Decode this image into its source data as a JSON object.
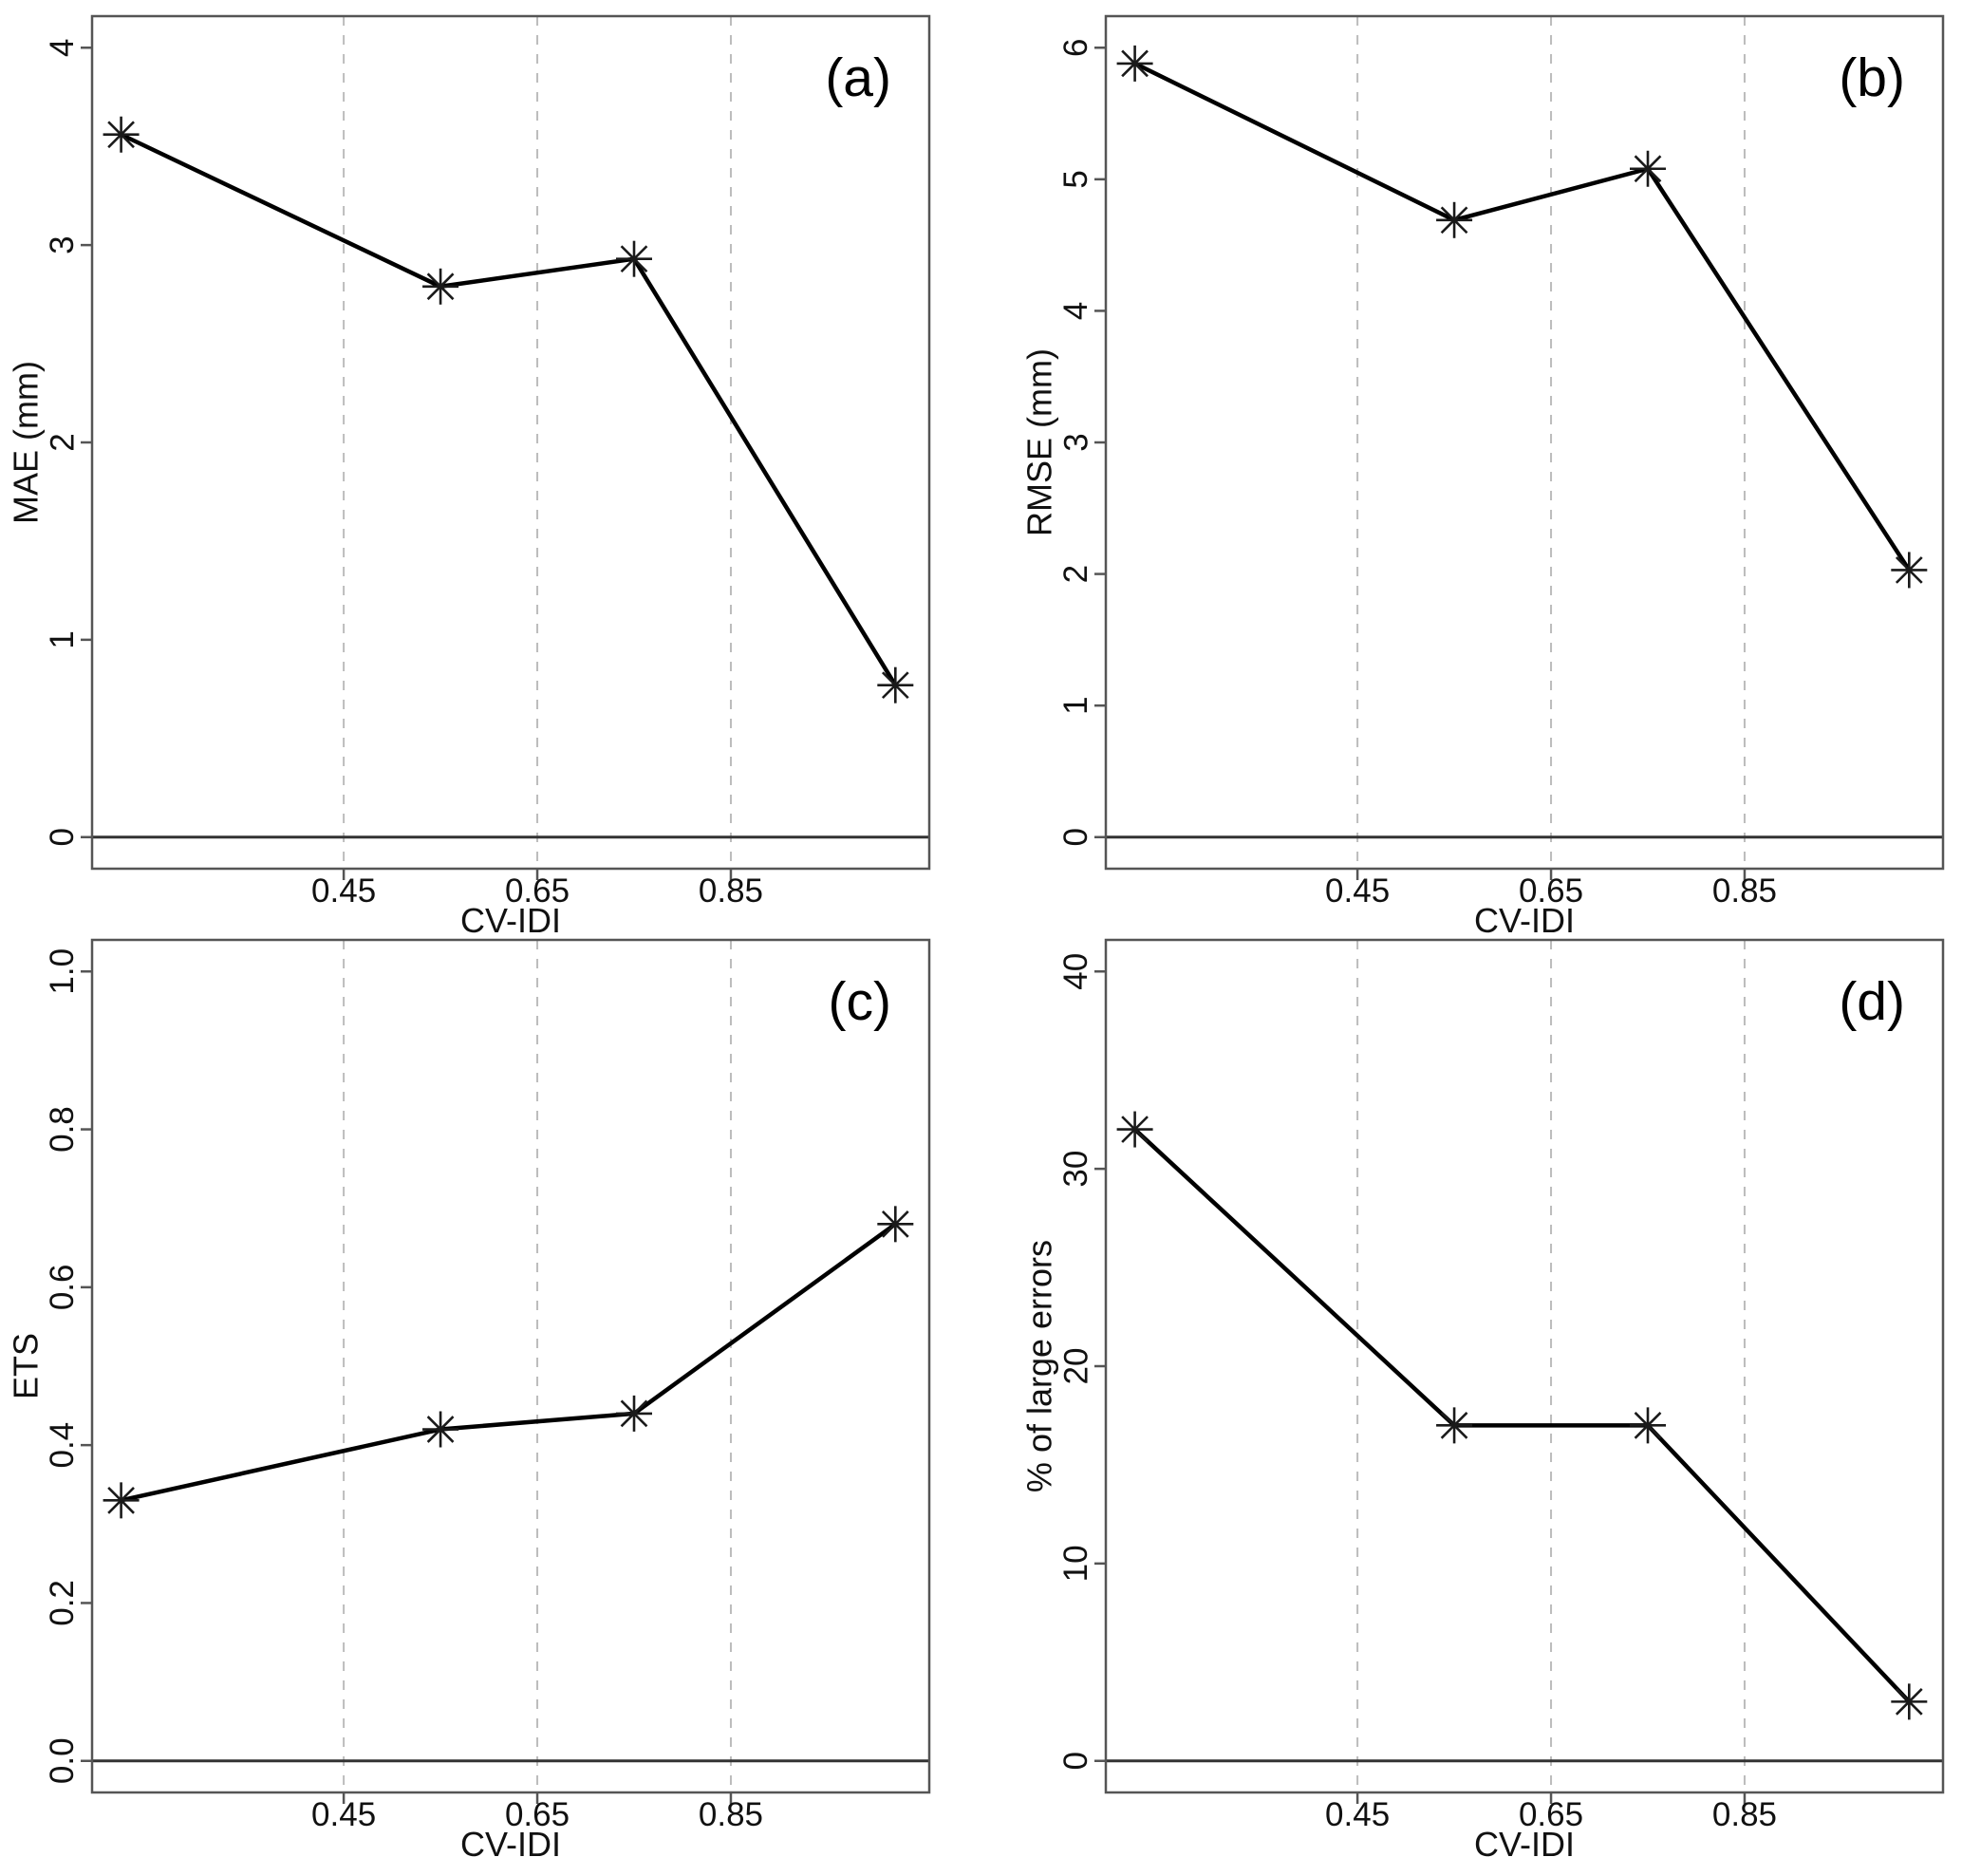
{
  "figure": {
    "description": "2x2 panel figure of rain-gauge verification metrics plotted against CV-IDI, R base-graphics style",
    "background": "#ffffff",
    "styles": {
      "line_color": "#000000",
      "marker_color": "#1a1a1a",
      "box_color": "#555555",
      "tick_color": "#555555",
      "grid_color": "#bcbcbc",
      "zero_line_color": "#333333",
      "text_color": "#111111"
    }
  },
  "chart_data": [
    {
      "type": "line",
      "panel_tag": "(a)",
      "xlabel": "CV-IDI",
      "ylabel": "MAE (mm)",
      "x": [
        0.22,
        0.55,
        0.75,
        1.02
      ],
      "y": [
        3.56,
        2.79,
        2.93,
        0.77
      ],
      "xlim": [
        0.19,
        1.055
      ],
      "ylim": [
        -0.16,
        4.16
      ],
      "xticks": [
        0.45,
        0.65,
        0.85
      ],
      "xtick_labels": [
        "0.45",
        "0.65",
        "0.85"
      ],
      "yticks": [
        0,
        1,
        2,
        3,
        4
      ],
      "ytick_labels": [
        "0",
        "1",
        "2",
        "3",
        "4"
      ],
      "grid": "vertical-dashed",
      "zero_line": true,
      "marker": "asterisk-8",
      "legend": null
    },
    {
      "type": "line",
      "panel_tag": "(b)",
      "xlabel": "CV-IDI",
      "ylabel": "RMSE (mm)",
      "x": [
        0.22,
        0.55,
        0.75,
        1.02
      ],
      "y": [
        5.88,
        4.69,
        5.08,
        2.03
      ],
      "xlim": [
        0.19,
        1.055
      ],
      "ylim": [
        -0.24,
        6.24
      ],
      "xticks": [
        0.45,
        0.65,
        0.85
      ],
      "xtick_labels": [
        "0.45",
        "0.65",
        "0.85"
      ],
      "yticks": [
        0,
        1,
        2,
        3,
        4,
        5,
        6
      ],
      "ytick_labels": [
        "0",
        "1",
        "2",
        "3",
        "4",
        "5",
        "6"
      ],
      "grid": "vertical-dashed",
      "zero_line": true,
      "marker": "asterisk-8",
      "legend": null
    },
    {
      "type": "line",
      "panel_tag": "(c)",
      "xlabel": "CV-IDI",
      "ylabel": "ETS",
      "x": [
        0.22,
        0.55,
        0.75,
        1.02
      ],
      "y": [
        0.33,
        0.42,
        0.44,
        0.68
      ],
      "xlim": [
        0.19,
        1.055
      ],
      "ylim": [
        -0.04,
        1.04
      ],
      "xticks": [
        0.45,
        0.65,
        0.85
      ],
      "xtick_labels": [
        "0.45",
        "0.65",
        "0.85"
      ],
      "yticks": [
        0.0,
        0.2,
        0.4,
        0.6,
        0.8,
        1.0
      ],
      "ytick_labels": [
        "0.0",
        "0.2",
        "0.4",
        "0.6",
        "0.8",
        "1.0"
      ],
      "grid": "vertical-dashed",
      "zero_line": true,
      "marker": "asterisk-8",
      "legend": null
    },
    {
      "type": "line",
      "panel_tag": "(d)",
      "xlabel": "CV-IDI",
      "ylabel": "% of large errors",
      "x": [
        0.22,
        0.55,
        0.75,
        1.02
      ],
      "y": [
        32,
        17,
        17,
        3
      ],
      "xlim": [
        0.19,
        1.055
      ],
      "ylim": [
        -1.6,
        41.6
      ],
      "xticks": [
        0.45,
        0.65,
        0.85
      ],
      "xtick_labels": [
        "0.45",
        "0.65",
        "0.85"
      ],
      "yticks": [
        0,
        10,
        20,
        30,
        40
      ],
      "ytick_labels": [
        "0",
        "10",
        "20",
        "30",
        "40"
      ],
      "grid": "vertical-dashed",
      "zero_line": true,
      "marker": "asterisk-8",
      "legend": null
    }
  ]
}
